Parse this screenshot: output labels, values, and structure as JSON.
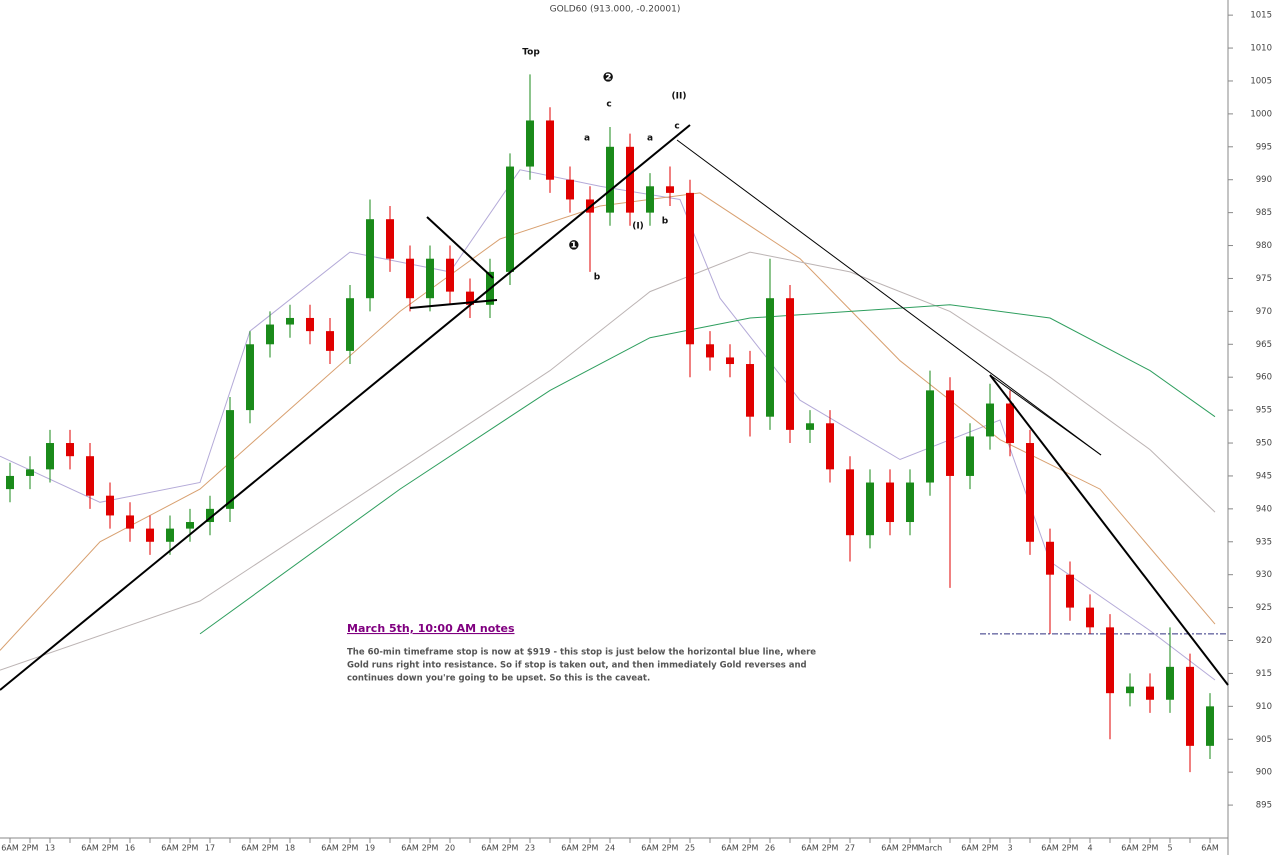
{
  "chart_data": {
    "type": "candlestick",
    "title": "GOLD60 (913.000, -0.20001)",
    "categories": [
      "6AM",
      "2PM",
      "13",
      null,
      "6AM",
      "2PM",
      "16",
      null,
      "6AM",
      "2PM",
      "17",
      null,
      "6AM",
      "2PM",
      "18",
      null,
      "6AM",
      "2PM",
      "19",
      null,
      "6AM",
      "2PM",
      "20",
      null,
      "6AM",
      "2PM",
      "23",
      null,
      "6AM",
      "2PM",
      "24",
      null,
      "6AM",
      "2PM",
      "25",
      null,
      "6AM",
      "2PM",
      "26",
      null,
      "6AM",
      "2PM",
      "27",
      null,
      "6AM",
      "2PM",
      "March",
      null,
      "6AM",
      "2PM",
      "3",
      null,
      "6AM",
      "2PM",
      "4",
      null,
      "6AM",
      "2PM",
      "5",
      null,
      "6AM"
    ],
    "open": [
      943,
      945,
      946,
      950,
      948,
      942,
      939,
      937,
      935,
      937,
      938,
      940,
      955,
      965,
      968,
      969,
      967,
      964,
      972,
      984,
      978,
      972,
      978,
      973,
      971,
      976,
      992,
      999,
      990,
      987,
      985,
      995,
      985,
      989,
      988,
      965,
      963,
      962,
      954,
      972,
      952,
      953,
      946,
      936,
      944,
      938,
      944,
      958,
      945,
      951,
      956,
      950,
      935,
      930,
      925,
      922,
      912,
      913,
      911,
      916,
      904
    ],
    "high": [
      947,
      948,
      952,
      952,
      950,
      944,
      941,
      939,
      939,
      940,
      942,
      957,
      967,
      970,
      971,
      971,
      969,
      974,
      987,
      986,
      980,
      980,
      980,
      975,
      978,
      994,
      1006,
      1001,
      992,
      989,
      998,
      997,
      991,
      992,
      990,
      967,
      965,
      964,
      978,
      974,
      955,
      955,
      948,
      946,
      946,
      946,
      961,
      960,
      953,
      959,
      958,
      952,
      937,
      932,
      927,
      924,
      915,
      915,
      922,
      918,
      912
    ],
    "low": [
      941,
      943,
      944,
      946,
      940,
      937,
      935,
      933,
      933,
      935,
      936,
      938,
      953,
      963,
      966,
      965,
      962,
      962,
      970,
      976,
      970,
      970,
      971,
      969,
      969,
      974,
      990,
      988,
      985,
      976,
      983,
      983,
      983,
      986,
      960,
      961,
      960,
      951,
      952,
      950,
      950,
      944,
      932,
      934,
      936,
      936,
      942,
      928,
      943,
      949,
      948,
      933,
      921,
      923,
      921,
      905,
      910,
      909,
      909,
      900,
      902
    ],
    "close": [
      945,
      946,
      950,
      948,
      942,
      939,
      937,
      935,
      937,
      938,
      940,
      955,
      965,
      968,
      969,
      967,
      964,
      972,
      984,
      978,
      972,
      978,
      973,
      971,
      976,
      992,
      999,
      990,
      987,
      985,
      995,
      985,
      989,
      988,
      965,
      963,
      962,
      954,
      972,
      952,
      953,
      946,
      936,
      944,
      938,
      944,
      958,
      945,
      951,
      956,
      950,
      935,
      930,
      925,
      922,
      912,
      913,
      911,
      916,
      904,
      910
    ],
    "up_color": "#1a8a1a",
    "down_color": "#e00000",
    "series": [
      {
        "color": "#b4aad8",
        "x": [
          -0.5,
          4.5,
          9.5,
          12,
          17,
          22,
          25.5,
          29.5,
          33.5,
          35.5,
          39.5,
          44.5,
          49.5,
          52,
          57,
          60.25
        ],
        "values": [
          948,
          941,
          944,
          967,
          979,
          976,
          991.5,
          989,
          987,
          972,
          956.5,
          947.5,
          953.5,
          932,
          921.5,
          914
        ]
      },
      {
        "color": "#d8a070",
        "x": [
          -0.5,
          4.5,
          9.5,
          14.5,
          19.5,
          24.5,
          29.5,
          34.5,
          39.5,
          44.5,
          49.5,
          54.5,
          60.25
        ],
        "values": [
          918.5,
          935,
          943,
          956.5,
          970,
          981,
          986,
          988,
          978,
          962.5,
          950.5,
          943,
          922.5
        ]
      },
      {
        "color": "#bcb4b4",
        "x": [
          -0.5,
          9.5,
          19.5,
          27,
          32,
          37,
          42,
          47,
          52,
          57,
          60.25
        ],
        "values": [
          915.5,
          926,
          946,
          961,
          973,
          979,
          976,
          970,
          960,
          949,
          939.5
        ]
      },
      {
        "color": "#2e9e5e",
        "x": [
          9.5,
          19.5,
          27,
          32,
          37,
          47,
          52,
          57,
          60.25
        ],
        "values": [
          921,
          943,
          958,
          966,
          969,
          971,
          969,
          961,
          954
        ]
      }
    ],
    "reference_line": 921,
    "ylim": [
      890,
      1017.3
    ],
    "yticks": [
      895,
      900,
      905,
      910,
      915,
      920,
      925,
      930,
      935,
      940,
      945,
      950,
      955,
      960,
      965,
      970,
      975,
      980,
      985,
      990,
      995,
      1000,
      1005,
      1010,
      1015
    ],
    "annotations": [
      "Top",
      "❷",
      "c",
      "(II)",
      "a",
      "a",
      "c",
      "❶",
      "b",
      "b",
      "(I)"
    ],
    "notes": {
      "heading": "March 5th,  10:00 AM notes",
      "lines": [
        "The 60-min timeframe stop is now at $919 - this stop is just below the horizontal blue line, where",
        "Gold runs right into resistance.  So if stop is taken out, and then immediately Gold reverses and",
        "continues down you're going to be upset.  So this is the caveat."
      ]
    }
  }
}
